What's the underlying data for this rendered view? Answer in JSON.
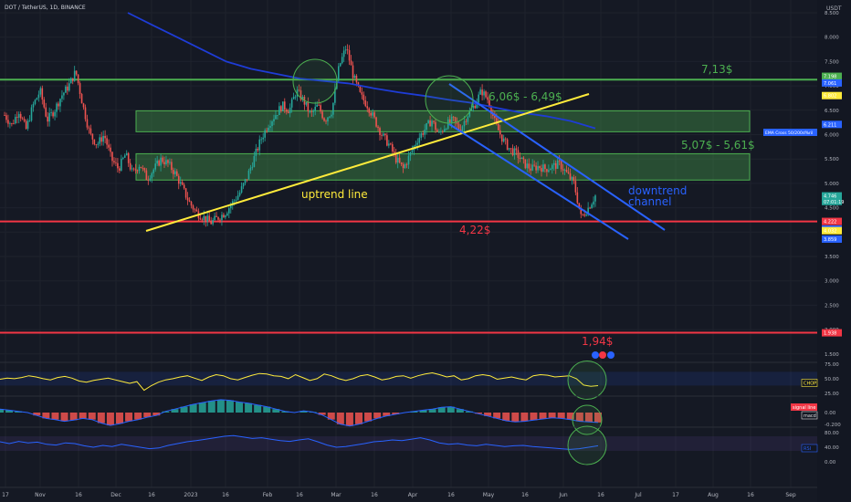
{
  "header": {
    "symbol": "DOT / TetherUS, 1D, BINANCE",
    "currency": "USDT"
  },
  "chart_data": {
    "type": "line",
    "title": "DOT / TetherUS, 1D, BINANCE",
    "xlabel": "",
    "ylabel": "USDT",
    "ylim": [
      0,
      8.5
    ],
    "price_ticks": [
      "8.500",
      "8.000",
      "7.500",
      "7.000",
      "6.500",
      "6.000",
      "5.500",
      "5.000",
      "4.500",
      "4.000",
      "3.500",
      "3.000",
      "2.500",
      "2.000",
      "1.500"
    ],
    "x_ticks": [
      "17",
      "Nov",
      "16",
      "Dec",
      "16",
      "2023",
      "16",
      "Feb",
      "16",
      "Mar",
      "16",
      "Apr",
      "16",
      "May",
      "16",
      "Jun",
      "16",
      "Jul",
      "17",
      "Aug",
      "16",
      "Sep"
    ],
    "price_path": [
      6.4,
      6.2,
      6.5,
      6.1,
      6.6,
      6.9,
      6.3,
      6.5,
      6.8,
      7.0,
      7.3,
      6.6,
      6.0,
      5.8,
      6.0,
      5.5,
      5.3,
      5.6,
      5.2,
      5.4,
      5.1,
      5.3,
      5.5,
      5.4,
      5.2,
      4.9,
      4.6,
      4.4,
      4.3,
      4.2,
      4.3,
      4.4,
      4.6,
      4.8,
      5.1,
      5.5,
      5.9,
      6.2,
      6.4,
      6.6,
      6.5,
      6.9,
      6.7,
      6.4,
      6.6,
      6.3,
      6.5,
      7.4,
      7.8,
      7.2,
      6.8,
      6.6,
      6.3,
      6.0,
      5.8,
      5.5,
      5.3,
      5.6,
      5.9,
      6.1,
      6.3,
      6.0,
      6.2,
      6.3,
      6.1,
      6.4,
      6.6,
      6.9,
      6.7,
      6.2,
      5.9,
      5.7,
      5.6,
      5.4,
      5.3,
      5.35,
      5.3,
      5.35,
      5.4,
      5.2,
      5.0,
      4.3,
      4.5,
      4.75
    ],
    "ema_path": [
      8.5,
      8.25,
      8.0,
      7.75,
      7.5,
      7.35,
      7.25,
      7.15,
      7.1,
      7.05,
      6.95,
      6.87,
      6.8,
      6.72,
      6.65,
      6.55,
      6.45,
      6.38,
      6.28,
      6.13
    ],
    "levels": [
      {
        "name": "7,13$",
        "value": 7.13,
        "color": "#4caf50"
      },
      {
        "name": "4,22$",
        "value": 4.22,
        "color": "#f23645"
      },
      {
        "name": "1,94$",
        "value": 1.94,
        "color": "#f23645"
      }
    ],
    "zones": [
      {
        "name": "6,06$ - 6,49$",
        "low": 6.06,
        "high": 6.49,
        "color": "#4caf50"
      },
      {
        "name": "5,07$ - 5,61$",
        "low": 5.07,
        "high": 5.61,
        "color": "#4caf50"
      }
    ],
    "trendlines": [
      {
        "name": "uptrend line",
        "color": "#ffeb3b"
      },
      {
        "name": "downtrend channel",
        "color": "#2962ff"
      }
    ],
    "price_labels": [
      {
        "text": "7.198",
        "value": 7.198,
        "color": "#4caf50"
      },
      {
        "text": "7.061",
        "value": 7.061,
        "color": "#2962ff"
      },
      {
        "text": "6.802",
        "value": 6.802,
        "color": "#ffeb3b"
      },
      {
        "text": "6.211",
        "value": 6.211,
        "color": "#2962ff"
      },
      {
        "text": "4.746",
        "value": 4.746,
        "color": "#26a69a"
      },
      {
        "text": "07:01:19",
        "value": 4.63,
        "color": "#26a69a"
      },
      {
        "text": "4.222",
        "value": 4.222,
        "color": "#f23645"
      },
      {
        "text": "4.066",
        "value": 4.066,
        "color": "#2962ff"
      },
      {
        "text": "4.032",
        "value": 4.032,
        "color": "#ffeb3b"
      },
      {
        "text": "3.859",
        "value": 3.859,
        "color": "#2962ff"
      },
      {
        "text": "1.938",
        "value": 1.938,
        "color": "#f23645"
      }
    ],
    "ema_label": "EMA Cross 50/200d%ril",
    "indicators": [
      {
        "name": "CHOP",
        "ticks": [
          "75.00",
          "50.00",
          "25.00"
        ],
        "color": "#ffeb3b",
        "label_color": "#ffeb3b",
        "values": [
          49,
          51,
          50,
          52,
          55,
          53,
          50,
          48,
          52,
          54,
          51,
          46,
          44,
          47,
          49,
          51,
          48,
          45,
          42,
          45,
          30,
          38,
          44,
          48,
          50,
          53,
          55,
          51,
          47,
          53,
          57,
          55,
          50,
          48,
          52,
          56,
          59,
          58,
          55,
          54,
          50,
          57,
          52,
          47,
          50,
          58,
          55,
          50,
          47,
          50,
          55,
          57,
          53,
          48,
          50,
          54,
          55,
          51,
          55,
          58,
          60,
          57,
          53,
          55,
          48,
          50,
          55,
          57,
          55,
          49,
          51,
          53,
          50,
          48,
          55,
          57,
          56,
          53,
          54,
          55,
          50,
          39,
          37,
          38
        ]
      },
      {
        "name": "macd",
        "label2": "signal line",
        "ticks": [
          "0.00",
          "-0.200"
        ],
        "color": "#2962ff",
        "label_color": "#e0e0e0",
        "values": [
          0.06,
          0.04,
          0.02,
          0.0,
          -0.05,
          -0.1,
          -0.12,
          -0.15,
          -0.13,
          -0.1,
          -0.12,
          -0.18,
          -0.22,
          -0.19,
          -0.15,
          -0.12,
          -0.08,
          -0.05,
          0.02,
          0.06,
          0.1,
          0.14,
          0.17,
          0.2,
          0.22,
          0.21,
          0.18,
          0.16,
          0.13,
          0.1,
          0.06,
          0.02,
          0.0,
          0.03,
          0.01,
          -0.04,
          -0.12,
          -0.2,
          -0.23,
          -0.2,
          -0.15,
          -0.1,
          -0.06,
          -0.03,
          0.0,
          0.02,
          0.04,
          0.06,
          0.09,
          0.1,
          0.06,
          0.02,
          -0.02,
          -0.06,
          -0.1,
          -0.14,
          -0.16,
          -0.15,
          -0.13,
          -0.11,
          -0.09,
          -0.1,
          -0.12,
          -0.15,
          -0.16,
          -0.17
        ]
      },
      {
        "name": "RSI",
        "ticks": [
          "80.00",
          "40.00",
          "0.00"
        ],
        "color": "#2962ff",
        "label_color": "#2962ff",
        "values": [
          55,
          50,
          56,
          52,
          54,
          48,
          46,
          52,
          50,
          44,
          40,
          45,
          42,
          48,
          44,
          40,
          36,
          38,
          45,
          50,
          55,
          58,
          62,
          66,
          70,
          72,
          68,
          64,
          66,
          62,
          58,
          56,
          60,
          63,
          55,
          46,
          40,
          42,
          46,
          50,
          55,
          57,
          60,
          58,
          62,
          66,
          60,
          52,
          48,
          50,
          46,
          44,
          48,
          45,
          42,
          44,
          45,
          42,
          40,
          38,
          36,
          34,
          36,
          40,
          44
        ]
      }
    ]
  },
  "annotations": {
    "level_top": "7,13$",
    "zone_upper": "6,06$ - 6,49$",
    "zone_lower": "5,07$ - 5,61$",
    "uptrend": "uptrend line",
    "downtrend_1": "downtrend",
    "downtrend_2": "channel",
    "level_mid": "4,22$",
    "level_low": "1,94$"
  }
}
